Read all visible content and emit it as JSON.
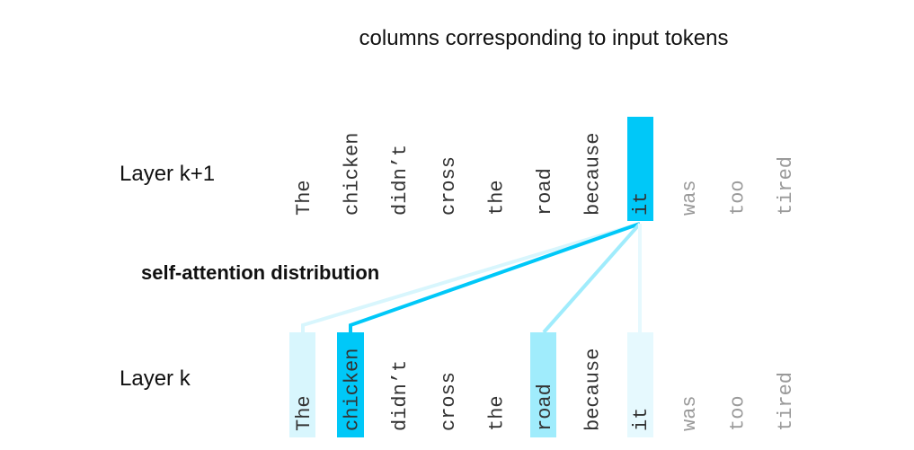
{
  "title": "columns corresponding to input tokens",
  "attention_label": "self-attention distribution",
  "layers": [
    {
      "label": "Layer k+1",
      "tokens": [
        "The",
        "chicken",
        "didn’t",
        "cross",
        "the",
        "road",
        "because",
        "it",
        "was",
        "too",
        "tired"
      ]
    },
    {
      "label": "Layer k",
      "tokens": [
        "The",
        "chicken",
        "didn’t",
        "cross",
        "the",
        "road",
        "because",
        "it",
        "was",
        "too",
        "tired"
      ]
    }
  ]
}
